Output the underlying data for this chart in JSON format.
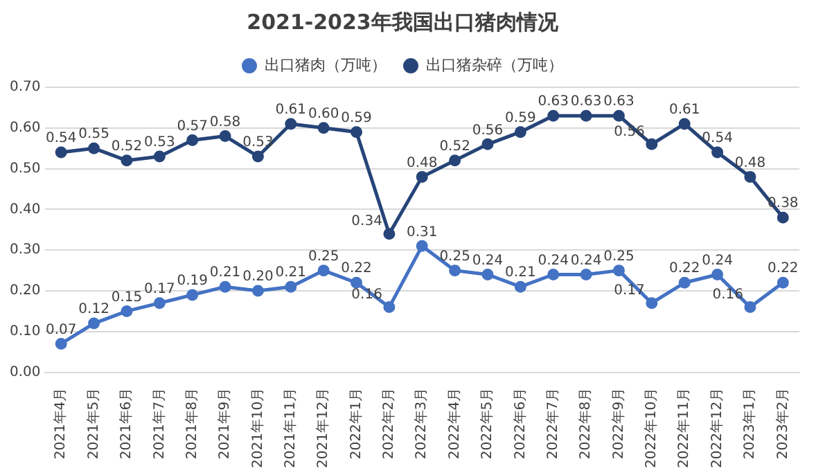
{
  "chart_data": {
    "type": "line",
    "title": "2021-2023年我国出口猪肉情况",
    "categories": [
      "2021年4月",
      "2021年5月",
      "2021年6月",
      "2021年7月",
      "2021年8月",
      "2021年9月",
      "2021年10月",
      "2021年11月",
      "2021年12月",
      "2022年1月",
      "2022年2月",
      "2022年3月",
      "2022年4月",
      "2022年5月",
      "2022年6月",
      "2022年7月",
      "2022年8月",
      "2022年9月",
      "2022年10月",
      "2022年11月",
      "2022年12月",
      "2023年1月",
      "2023年2月"
    ],
    "series": [
      {
        "name": "出口猪肉（万吨）",
        "color": "#4472c4",
        "values": [
          0.07,
          0.12,
          0.15,
          0.17,
          0.19,
          0.21,
          0.2,
          0.21,
          0.25,
          0.22,
          0.16,
          0.31,
          0.25,
          0.24,
          0.21,
          0.24,
          0.24,
          0.25,
          0.17,
          0.22,
          0.24,
          0.16,
          0.22
        ],
        "value_labels": [
          "0.07",
          "0.12",
          "0.15",
          "0.17",
          "0.19",
          "0.21",
          "0.20",
          "0.21",
          "0.25",
          "0.22",
          "0.16",
          "0.31",
          "0.25",
          "0.24",
          "0.21",
          "0.24",
          "0.24",
          "0.25",
          "0.17",
          "0.22",
          "0.24",
          "0.16",
          "0.22"
        ]
      },
      {
        "name": "出口猪杂碎（万吨）",
        "color": "#264478",
        "values": [
          0.54,
          0.55,
          0.52,
          0.53,
          0.57,
          0.58,
          0.53,
          0.61,
          0.6,
          0.59,
          0.34,
          0.48,
          0.52,
          0.56,
          0.59,
          0.63,
          0.63,
          0.63,
          0.56,
          0.61,
          0.54,
          0.48,
          0.38
        ],
        "value_labels": [
          "0.54",
          "0.55",
          "0.52",
          "0.53",
          "0.57",
          "0.58",
          "0.53",
          "0.61",
          "0.60",
          "0.59",
          "0.34",
          "0.48",
          "0.52",
          "0.56",
          "0.59",
          "0.63",
          "0.63",
          "0.63",
          "0.56",
          "0.61",
          "0.54",
          "0.48",
          "0.38"
        ]
      }
    ],
    "ylim": [
      0,
      0.7
    ],
    "yticks": [
      {
        "value": 0,
        "label": "0.00"
      },
      {
        "value": 0.1,
        "label": "0.10"
      },
      {
        "value": 0.2,
        "label": "0.20"
      },
      {
        "value": 0.3,
        "label": "0.30"
      },
      {
        "value": 0.4,
        "label": "0.40"
      },
      {
        "value": 0.5,
        "label": "0.50"
      },
      {
        "value": 0.6,
        "label": "0.60"
      },
      {
        "value": 0.7,
        "label": "0.70"
      }
    ],
    "grid": "y",
    "legend": "top",
    "marker": "circle",
    "line_style": "solid"
  }
}
